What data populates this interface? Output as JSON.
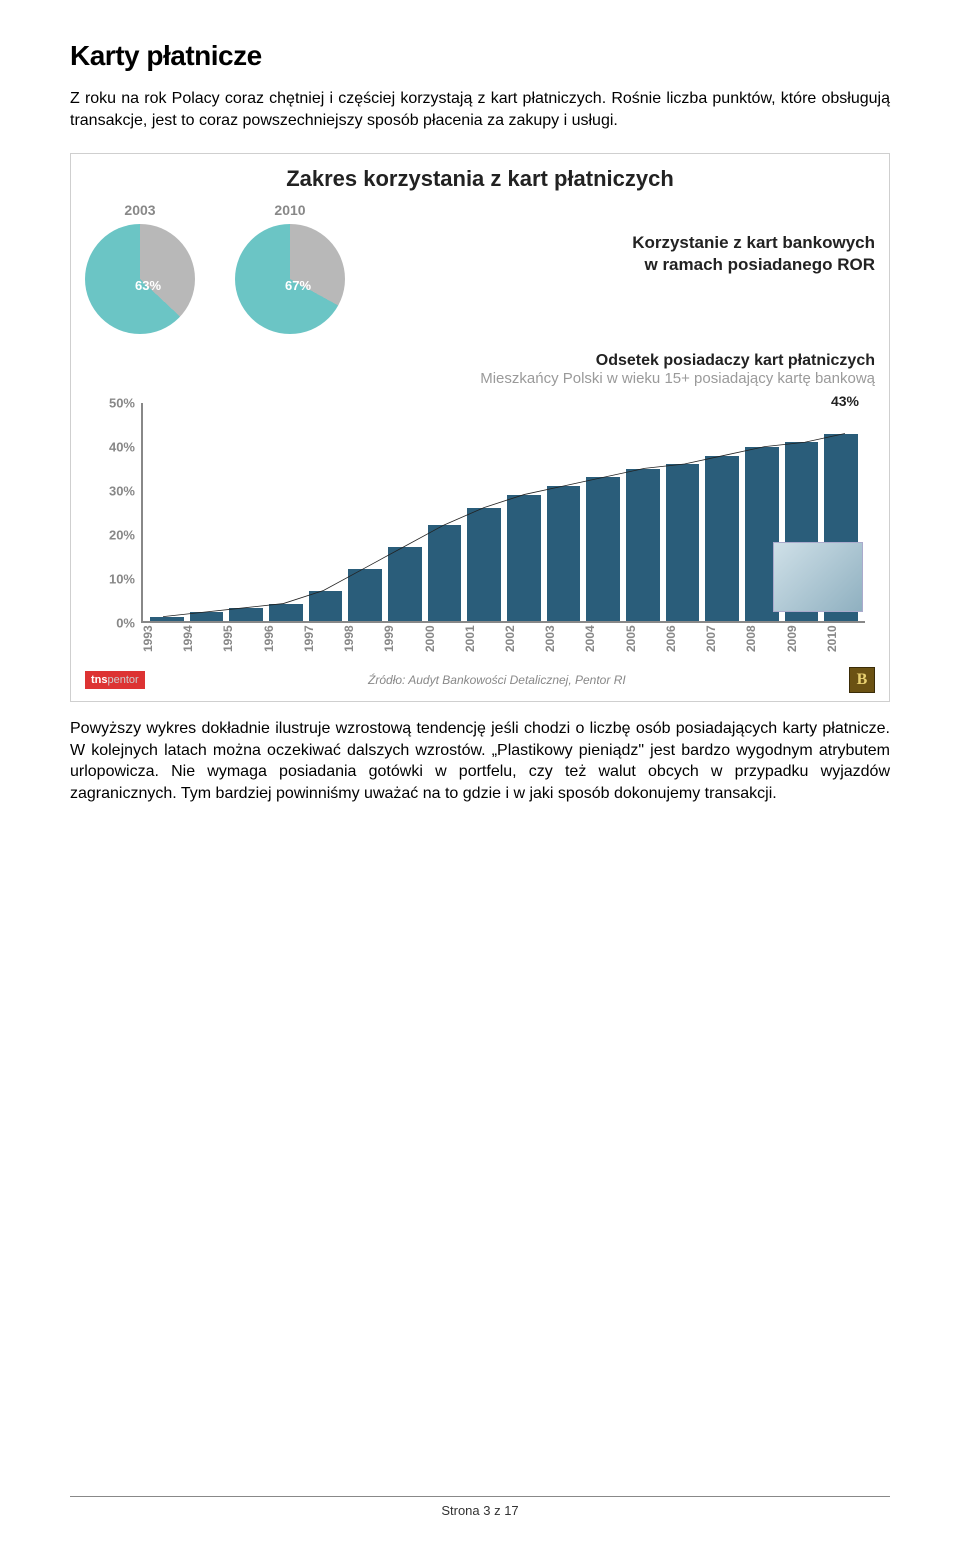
{
  "title": "Karty płatnicze",
  "para1": "Z roku na rok Polacy coraz chętniej i częściej korzystają z kart płatniczych. Rośnie liczba punktów, które obsługują transakcje, jest to coraz powszechniejszy sposób płacenia za zakupy i usługi.",
  "para2": "Powyższy wykres dokładnie ilustruje wzrostową tendencję jeśli chodzi o liczbę osób posiadających karty płatnicze. W kolejnych latach można oczekiwać dalszych wzrostów. „Plastikowy pieniądz\" jest bardzo wygodnym atrybutem urlopowicza. Nie wymaga posiadania gotówki w portfelu, czy też walut obcych w przypadku wyjazdów zagranicznych. Tym bardziej powinniśmy uważać na to gdzie i w jaki sposób dokonujemy transakcji.",
  "chart": {
    "title": "Zakres korzystania z kart płatniczych",
    "pies": [
      {
        "year": "2003",
        "pct_label": "63%",
        "value": 63
      },
      {
        "year": "2010",
        "pct_label": "67%",
        "value": 67
      }
    ],
    "pie_colors": {
      "main": "#6bc5c5",
      "rest": "#b8b8b8"
    },
    "pies_caption_l1": "Korzystanie z kart bankowych",
    "pies_caption_l2": "w ramach posiadanego ROR",
    "sub1": "Odsetek posiadaczy kart płatniczych",
    "sub2": "Mieszkańcy Polski w wieku 15+ posiadający kartę bankową",
    "bars": {
      "type": "bar",
      "years": [
        "1993",
        "1994",
        "1995",
        "1996",
        "1997",
        "1998",
        "1999",
        "2000",
        "2001",
        "2002",
        "2003",
        "2004",
        "2005",
        "2006",
        "2007",
        "2008",
        "2009",
        "2010"
      ],
      "values": [
        1,
        2,
        3,
        4,
        7,
        12,
        17,
        22,
        26,
        29,
        31,
        33,
        35,
        36,
        38,
        40,
        41,
        43
      ],
      "bar_color": "#2a5d7a",
      "ylim": [
        0,
        50
      ],
      "yticks": [
        "0%",
        "10%",
        "20%",
        "30%",
        "40%",
        "50%"
      ],
      "max_label": "43%",
      "trend_color": "#222222",
      "axis_color": "#888888",
      "background_color": "#ffffff"
    },
    "source": "Źródło: Audyt Bankowości Detalicznej, Pentor RI",
    "badge_tns": "tns",
    "badge_tns_sub": "pentor",
    "badge_b": "B"
  },
  "footer": "Strona 3 z 17"
}
